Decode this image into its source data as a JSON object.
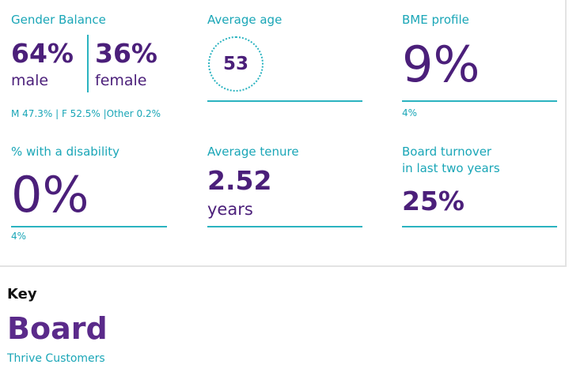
{
  "gender": {
    "label": "Gender Balance",
    "male_pct": "64%",
    "male_word": "male",
    "female_pct": "36%",
    "female_word": "female",
    "note": "M 47.3% | F 52.5% |Other 0.2%"
  },
  "age": {
    "label": "Average age",
    "value": "53"
  },
  "bme": {
    "label": "BME profile",
    "value": "9%",
    "note": "4%"
  },
  "disability": {
    "label": "% with a disability",
    "value": "0%",
    "note": "4%"
  },
  "tenure": {
    "label": "Average tenure",
    "value": "2.52",
    "unit": "years"
  },
  "turnover": {
    "label_line1": "Board turnover",
    "label_line2": "in last two years",
    "value": "25%"
  },
  "key": {
    "title": "Key",
    "board": "Board",
    "subtitle": "Thrive Customers"
  },
  "colors": {
    "teal": "#1aa6b7",
    "purple": "#4b1f7a"
  }
}
